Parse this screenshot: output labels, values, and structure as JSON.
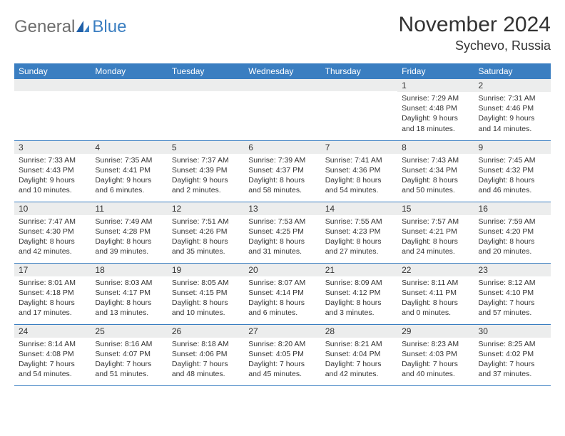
{
  "logo": {
    "general": "General",
    "blue": "Blue"
  },
  "title": "November 2024",
  "subtitle": "Sychevo, Russia",
  "colors": {
    "header_bg": "#3a7ec1",
    "header_fg": "#ffffff",
    "daynum_bg": "#eceded",
    "border": "#3a7ec1",
    "text": "#333333",
    "logo_gray": "#6e6e6e",
    "logo_blue": "#3a7ec1",
    "page_bg": "#ffffff"
  },
  "typography": {
    "title_fontsize": 30,
    "subtitle_fontsize": 18,
    "header_fontsize": 12,
    "daynum_fontsize": 12,
    "body_fontsize": 10.5,
    "logo_fontsize": 24
  },
  "weekdays": [
    "Sunday",
    "Monday",
    "Tuesday",
    "Wednesday",
    "Thursday",
    "Friday",
    "Saturday"
  ],
  "weeks": [
    [
      {
        "n": "",
        "lines": []
      },
      {
        "n": "",
        "lines": []
      },
      {
        "n": "",
        "lines": []
      },
      {
        "n": "",
        "lines": []
      },
      {
        "n": "",
        "lines": []
      },
      {
        "n": "1",
        "lines": [
          "Sunrise: 7:29 AM",
          "Sunset: 4:48 PM",
          "Daylight: 9 hours and 18 minutes."
        ]
      },
      {
        "n": "2",
        "lines": [
          "Sunrise: 7:31 AM",
          "Sunset: 4:46 PM",
          "Daylight: 9 hours and 14 minutes."
        ]
      }
    ],
    [
      {
        "n": "3",
        "lines": [
          "Sunrise: 7:33 AM",
          "Sunset: 4:43 PM",
          "Daylight: 9 hours and 10 minutes."
        ]
      },
      {
        "n": "4",
        "lines": [
          "Sunrise: 7:35 AM",
          "Sunset: 4:41 PM",
          "Daylight: 9 hours and 6 minutes."
        ]
      },
      {
        "n": "5",
        "lines": [
          "Sunrise: 7:37 AM",
          "Sunset: 4:39 PM",
          "Daylight: 9 hours and 2 minutes."
        ]
      },
      {
        "n": "6",
        "lines": [
          "Sunrise: 7:39 AM",
          "Sunset: 4:37 PM",
          "Daylight: 8 hours and 58 minutes."
        ]
      },
      {
        "n": "7",
        "lines": [
          "Sunrise: 7:41 AM",
          "Sunset: 4:36 PM",
          "Daylight: 8 hours and 54 minutes."
        ]
      },
      {
        "n": "8",
        "lines": [
          "Sunrise: 7:43 AM",
          "Sunset: 4:34 PM",
          "Daylight: 8 hours and 50 minutes."
        ]
      },
      {
        "n": "9",
        "lines": [
          "Sunrise: 7:45 AM",
          "Sunset: 4:32 PM",
          "Daylight: 8 hours and 46 minutes."
        ]
      }
    ],
    [
      {
        "n": "10",
        "lines": [
          "Sunrise: 7:47 AM",
          "Sunset: 4:30 PM",
          "Daylight: 8 hours and 42 minutes."
        ]
      },
      {
        "n": "11",
        "lines": [
          "Sunrise: 7:49 AM",
          "Sunset: 4:28 PM",
          "Daylight: 8 hours and 39 minutes."
        ]
      },
      {
        "n": "12",
        "lines": [
          "Sunrise: 7:51 AM",
          "Sunset: 4:26 PM",
          "Daylight: 8 hours and 35 minutes."
        ]
      },
      {
        "n": "13",
        "lines": [
          "Sunrise: 7:53 AM",
          "Sunset: 4:25 PM",
          "Daylight: 8 hours and 31 minutes."
        ]
      },
      {
        "n": "14",
        "lines": [
          "Sunrise: 7:55 AM",
          "Sunset: 4:23 PM",
          "Daylight: 8 hours and 27 minutes."
        ]
      },
      {
        "n": "15",
        "lines": [
          "Sunrise: 7:57 AM",
          "Sunset: 4:21 PM",
          "Daylight: 8 hours and 24 minutes."
        ]
      },
      {
        "n": "16",
        "lines": [
          "Sunrise: 7:59 AM",
          "Sunset: 4:20 PM",
          "Daylight: 8 hours and 20 minutes."
        ]
      }
    ],
    [
      {
        "n": "17",
        "lines": [
          "Sunrise: 8:01 AM",
          "Sunset: 4:18 PM",
          "Daylight: 8 hours and 17 minutes."
        ]
      },
      {
        "n": "18",
        "lines": [
          "Sunrise: 8:03 AM",
          "Sunset: 4:17 PM",
          "Daylight: 8 hours and 13 minutes."
        ]
      },
      {
        "n": "19",
        "lines": [
          "Sunrise: 8:05 AM",
          "Sunset: 4:15 PM",
          "Daylight: 8 hours and 10 minutes."
        ]
      },
      {
        "n": "20",
        "lines": [
          "Sunrise: 8:07 AM",
          "Sunset: 4:14 PM",
          "Daylight: 8 hours and 6 minutes."
        ]
      },
      {
        "n": "21",
        "lines": [
          "Sunrise: 8:09 AM",
          "Sunset: 4:12 PM",
          "Daylight: 8 hours and 3 minutes."
        ]
      },
      {
        "n": "22",
        "lines": [
          "Sunrise: 8:11 AM",
          "Sunset: 4:11 PM",
          "Daylight: 8 hours and 0 minutes."
        ]
      },
      {
        "n": "23",
        "lines": [
          "Sunrise: 8:12 AM",
          "Sunset: 4:10 PM",
          "Daylight: 7 hours and 57 minutes."
        ]
      }
    ],
    [
      {
        "n": "24",
        "lines": [
          "Sunrise: 8:14 AM",
          "Sunset: 4:08 PM",
          "Daylight: 7 hours and 54 minutes."
        ]
      },
      {
        "n": "25",
        "lines": [
          "Sunrise: 8:16 AM",
          "Sunset: 4:07 PM",
          "Daylight: 7 hours and 51 minutes."
        ]
      },
      {
        "n": "26",
        "lines": [
          "Sunrise: 8:18 AM",
          "Sunset: 4:06 PM",
          "Daylight: 7 hours and 48 minutes."
        ]
      },
      {
        "n": "27",
        "lines": [
          "Sunrise: 8:20 AM",
          "Sunset: 4:05 PM",
          "Daylight: 7 hours and 45 minutes."
        ]
      },
      {
        "n": "28",
        "lines": [
          "Sunrise: 8:21 AM",
          "Sunset: 4:04 PM",
          "Daylight: 7 hours and 42 minutes."
        ]
      },
      {
        "n": "29",
        "lines": [
          "Sunrise: 8:23 AM",
          "Sunset: 4:03 PM",
          "Daylight: 7 hours and 40 minutes."
        ]
      },
      {
        "n": "30",
        "lines": [
          "Sunrise: 8:25 AM",
          "Sunset: 4:02 PM",
          "Daylight: 7 hours and 37 minutes."
        ]
      }
    ]
  ]
}
